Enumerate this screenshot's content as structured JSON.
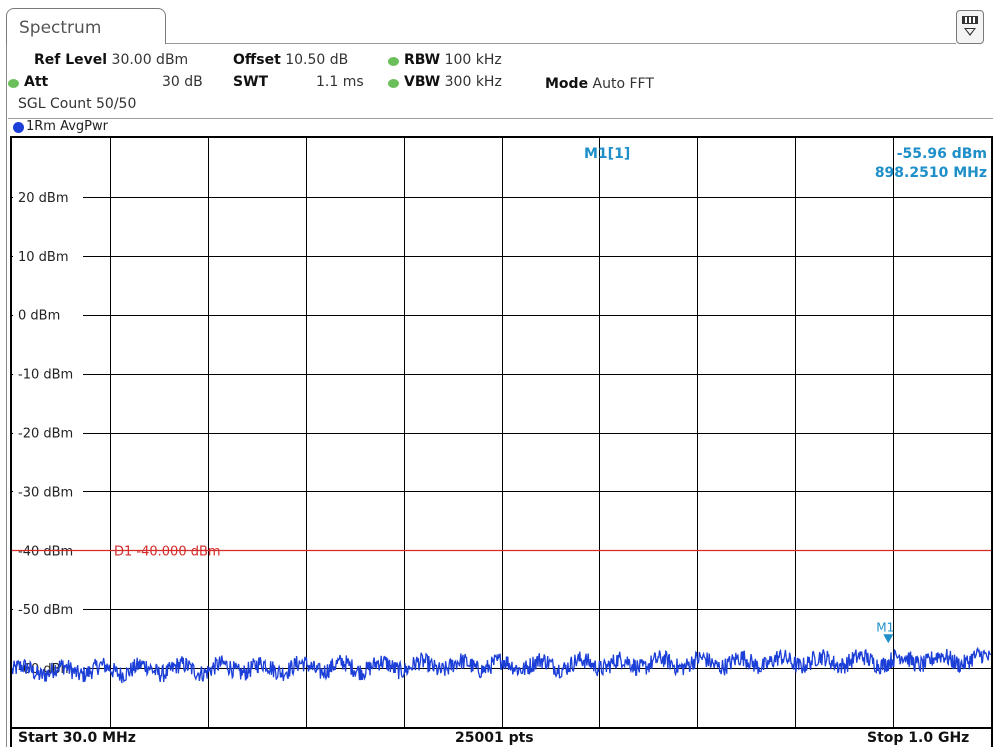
{
  "tab": {
    "label": "Spectrum"
  },
  "header": {
    "ref_level": {
      "label": "Ref Level",
      "value": "30.00 dBm"
    },
    "offset": {
      "label": "Offset",
      "value": "10.50 dB"
    },
    "rbw": {
      "label": "RBW",
      "value": "100 kHz"
    },
    "att": {
      "label": "Att",
      "value": "30 dB"
    },
    "swt": {
      "label": "SWT",
      "value": "1.1 ms"
    },
    "vbw": {
      "label": "VBW",
      "value": "300 kHz"
    },
    "mode": {
      "label": "Mode",
      "value": "Auto FFT"
    },
    "sgl_count": "SGL Count 50/50"
  },
  "trace": {
    "label": "1Rm AvgPwr",
    "color": "#1c3fd8"
  },
  "marker": {
    "name": "M1[1]",
    "level": "-55.96 dBm",
    "freq": "898.2510 MHz",
    "label": "M1",
    "color": "#1e8fc8",
    "freq_mhz": 898.251
  },
  "display_line": {
    "label": "D1  -40.000 dBm",
    "level_dbm": -40,
    "color": "#d42a2a"
  },
  "footer": {
    "start": "Start 30.0 MHz",
    "points": "25001 pts",
    "stop": "Stop 1.0 GHz"
  },
  "chart_data": {
    "type": "line",
    "xlabel": "",
    "ylabel": "",
    "x_range_mhz": [
      30,
      1000
    ],
    "ylim": [
      -70,
      30
    ],
    "grid": true,
    "y_ticks": [
      "20 dBm",
      "10 dBm",
      "0 dBm",
      "-10 dBm",
      "-20 dBm",
      "-30 dBm",
      "-40 dBm",
      "-50 dBm",
      "-60 dBm"
    ],
    "y_tick_values": [
      20,
      10,
      0,
      -10,
      -20,
      -30,
      -40,
      -50,
      -60
    ],
    "series": [
      {
        "noise_floor_start_dbm": -60.5,
        "noise_floor_end_dbm": -58.5,
        "ripple_db": 3
      }
    ]
  }
}
